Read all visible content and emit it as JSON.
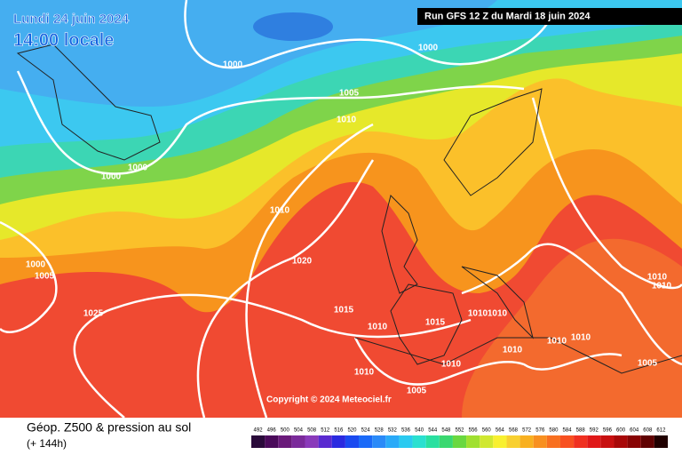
{
  "header": {
    "date": "Lundi 24 juin 2024",
    "time": "14:00 locale",
    "run": "Run GFS 12 Z du Mardi 18 juin 2024"
  },
  "footer": {
    "title": "Géop. Z500 & pression au sol",
    "lead": "(+ 144h)",
    "copyright": "Copyright © 2024 Meteociel.fr"
  },
  "colorbar": {
    "labels": [
      "492",
      "496",
      "500",
      "504",
      "508",
      "512",
      "516",
      "520",
      "524",
      "528",
      "532",
      "536",
      "540",
      "544",
      "548",
      "552",
      "556",
      "560",
      "564",
      "568",
      "572",
      "576",
      "580",
      "584",
      "588",
      "592",
      "596",
      "600",
      "604",
      "608",
      "612"
    ]
  },
  "isobars": {
    "labels": [
      "1000",
      "1000",
      "1005",
      "1010",
      "1000",
      "1000",
      "1010",
      "1000",
      "1005",
      "1020",
      "1025",
      "1015",
      "1010",
      "1015",
      "1010",
      "1010",
      "1010",
      "1010",
      "1010",
      "1010",
      "1010",
      "1005",
      "1005",
      "1010",
      "1010"
    ]
  }
}
